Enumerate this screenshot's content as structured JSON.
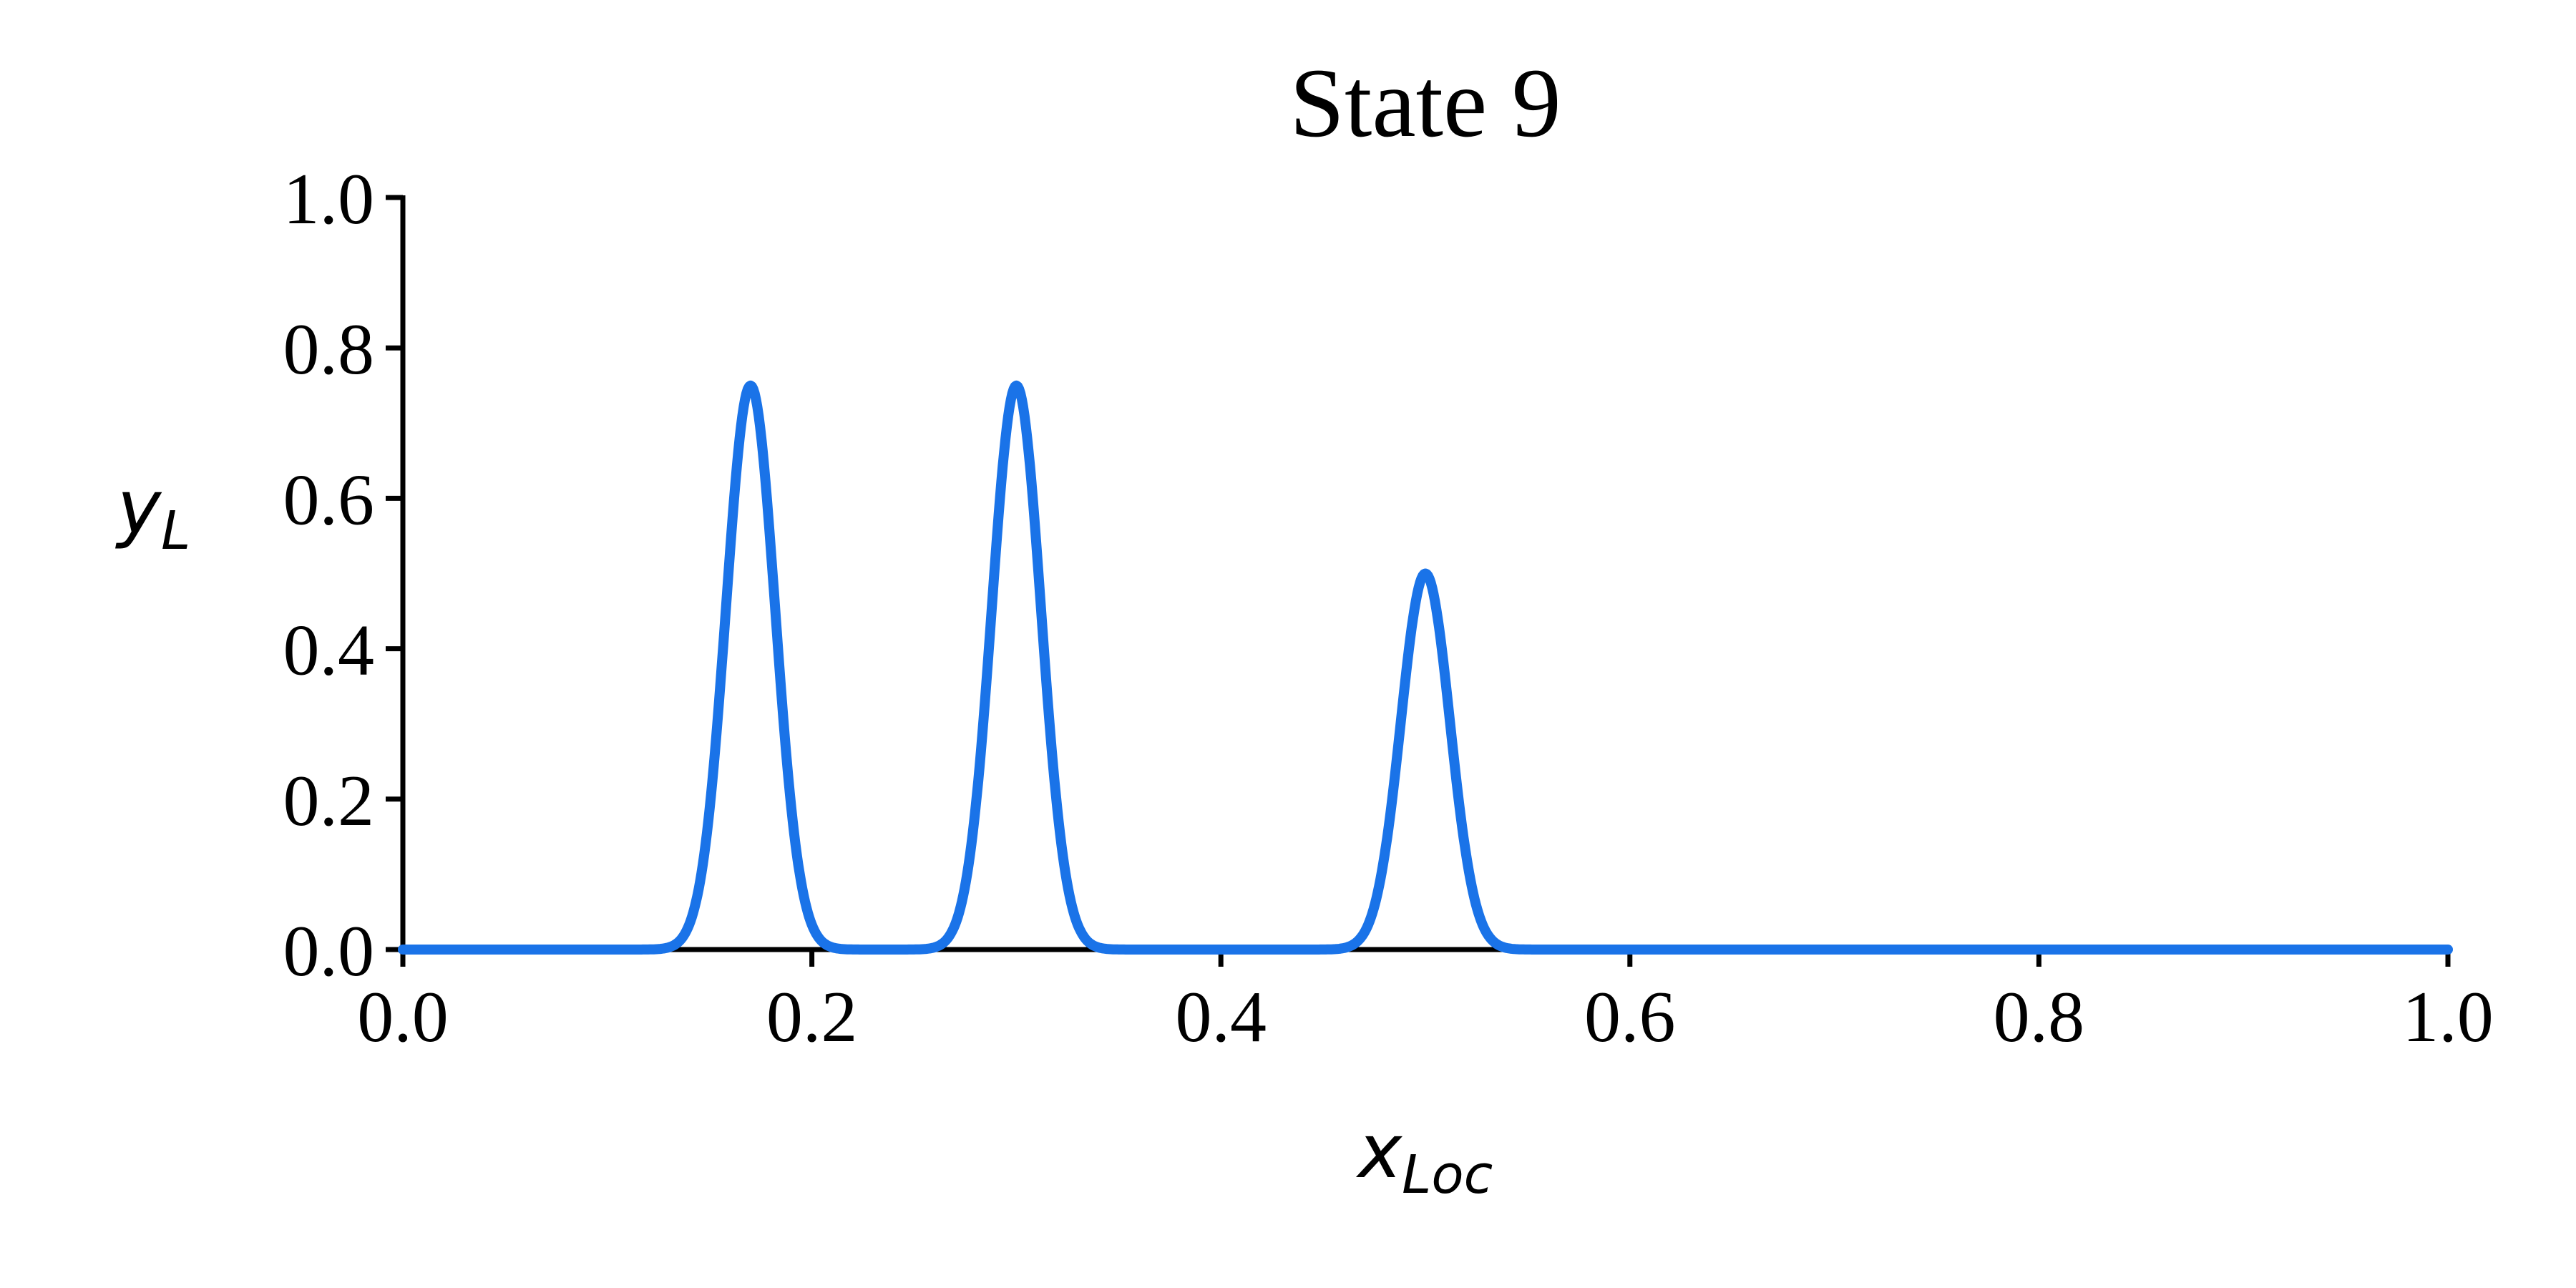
{
  "page": {
    "background_color": "#ffffff",
    "text_color": "#000000"
  },
  "chart_data": {
    "type": "line",
    "title": "State 9",
    "xlabel": "x_Loc",
    "xlabel_main": "x",
    "xlabel_sub": "Loc",
    "ylabel": "y_L",
    "ylabel_main": "y",
    "ylabel_sub": "L",
    "xlim": [
      0.0,
      1.0
    ],
    "ylim": [
      0.0,
      1.0
    ],
    "xticks": [
      "0.0",
      "0.2",
      "0.4",
      "0.6",
      "0.8",
      "1.0"
    ],
    "yticks": [
      "0.0",
      "0.2",
      "0.4",
      "0.6",
      "0.8",
      "1.0"
    ],
    "grid": false,
    "legend_position": "none",
    "line_color": "#1a73e8",
    "line_width": 14,
    "spine_color": "#000000",
    "series": [
      {
        "name": "y_L",
        "shape": "sum-of-gaussians",
        "baseline": 0.0,
        "peaks": [
          {
            "center": 0.17,
            "height": 0.75,
            "sigma": 0.012
          },
          {
            "center": 0.3,
            "height": 0.75,
            "sigma": 0.012
          },
          {
            "center": 0.5,
            "height": 0.5,
            "sigma": 0.012
          }
        ]
      }
    ]
  }
}
